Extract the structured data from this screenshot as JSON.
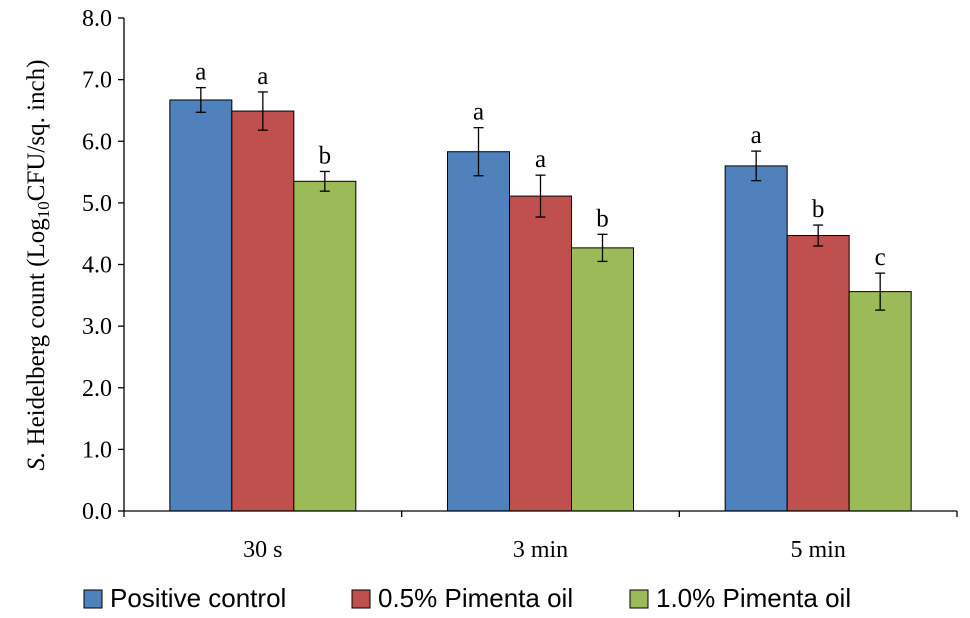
{
  "chart_data": {
    "type": "bar",
    "title": "",
    "xlabel": "",
    "ylabel": {
      "italic_part": "S.",
      "main_part": " Heidelberg count (Log",
      "subscript": "10",
      "tail": "CFU/sq. inch)"
    },
    "ylim": [
      0,
      8
    ],
    "yticks": [
      0,
      1,
      2,
      3,
      4,
      5,
      6,
      7,
      8
    ],
    "ytick_labels": [
      "0.0",
      "1.0",
      "2.0",
      "3.0",
      "4.0",
      "5.0",
      "6.0",
      "7.0",
      "8.0"
    ],
    "categories": [
      "30 s",
      "3 min",
      "5 min"
    ],
    "series": [
      {
        "name": "Positive control",
        "color": "#4f81bd",
        "values": [
          6.67,
          5.83,
          5.6
        ],
        "errors": [
          0.2,
          0.39,
          0.24
        ],
        "sig_labels": [
          "a",
          "a",
          "a"
        ]
      },
      {
        "name": "0.5% Pimenta oil",
        "color": "#c0504d",
        "values": [
          6.49,
          5.11,
          4.47
        ],
        "errors": [
          0.31,
          0.34,
          0.17
        ],
        "sig_labels": [
          "a",
          "a",
          "b"
        ]
      },
      {
        "name": "1.0% Pimenta oil",
        "color": "#9bbb59",
        "values": [
          5.35,
          4.27,
          3.56
        ],
        "errors": [
          0.16,
          0.22,
          0.3
        ],
        "sig_labels": [
          "b",
          "b",
          "c"
        ]
      }
    ],
    "grid": false,
    "legend_position": "bottom"
  }
}
